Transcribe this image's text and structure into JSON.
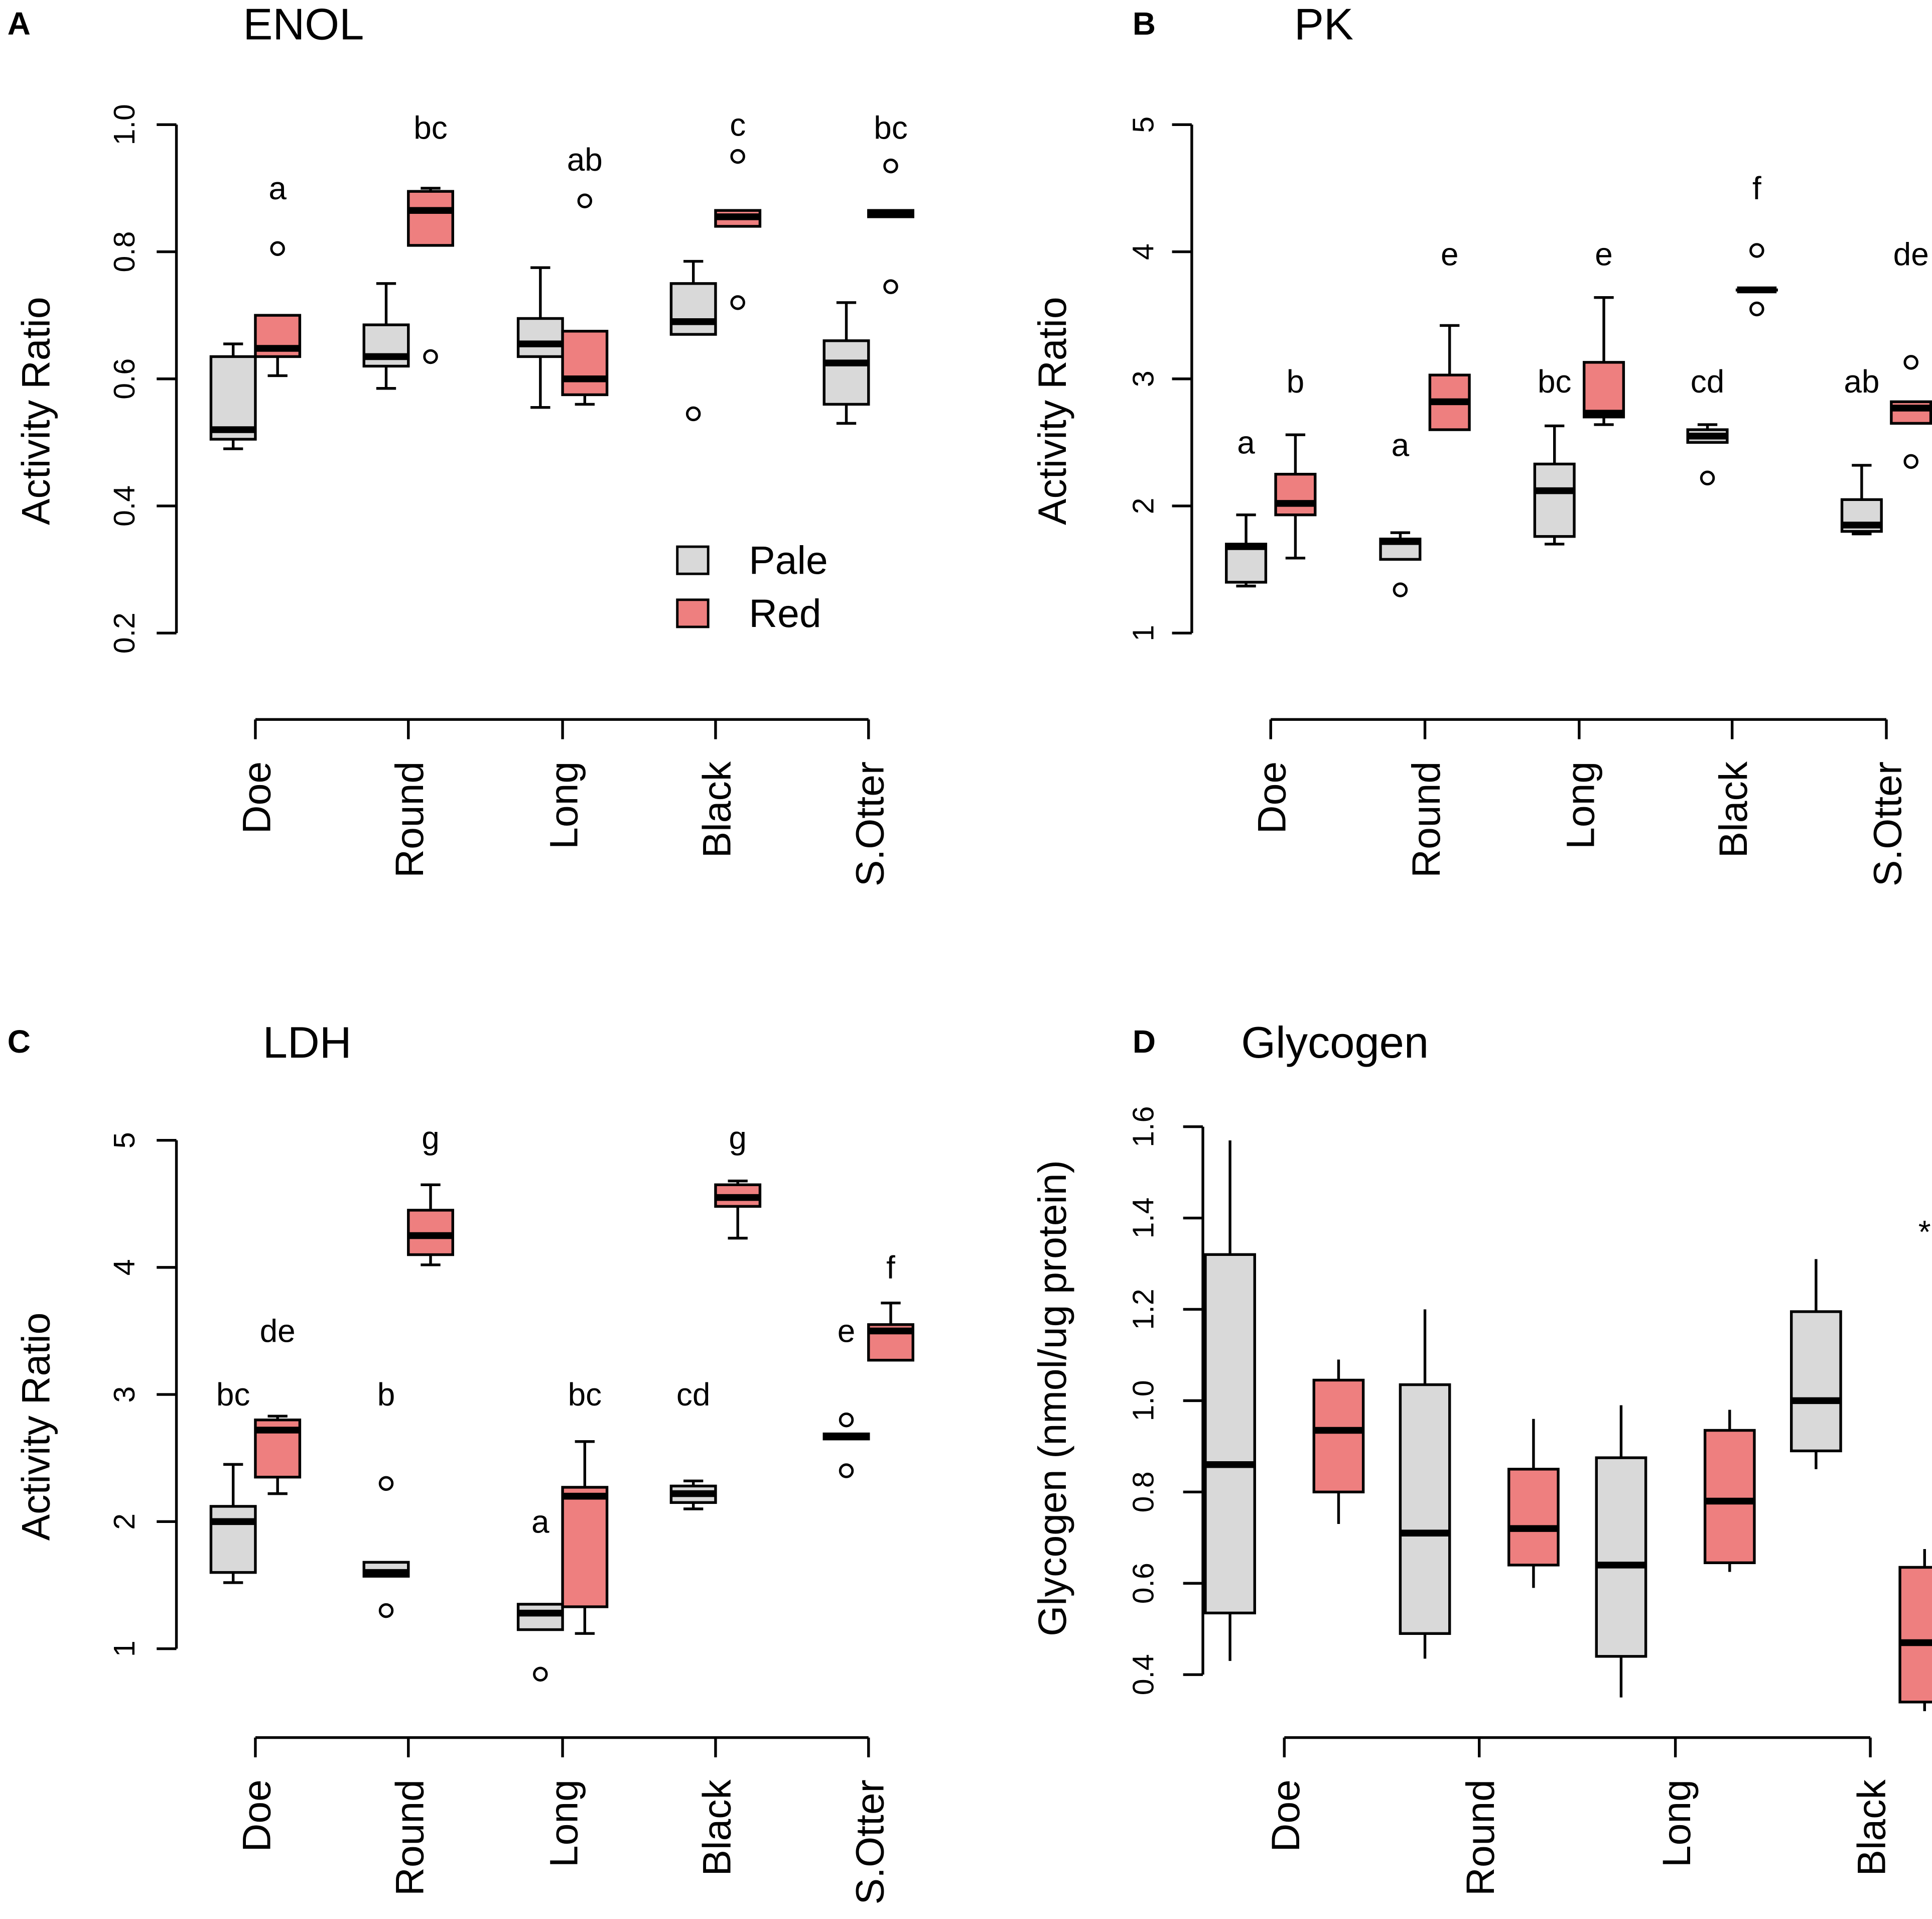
{
  "figure": {
    "legend": {
      "entries": [
        {
          "name": "Pale",
          "color": "#d9d9d9"
        },
        {
          "name": "Red",
          "color": "#ee7f7f"
        }
      ]
    },
    "box_style": {
      "pale_color": "#d9d9d9",
      "red_color": "#ee7f7f",
      "line_color": "#000000"
    }
  },
  "chart_data": [
    {
      "panel_letter": "A",
      "type": "boxplot",
      "title": "ENOL",
      "ylabel": "Activity Ratio",
      "xlabel": "",
      "ylim": [
        0.2,
        1.0
      ],
      "yticks": [
        0.2,
        0.4,
        0.6,
        0.8,
        1.0
      ],
      "ytick_labels": [
        "0.2",
        "0.4",
        "0.6",
        "0.8",
        "1.0"
      ],
      "categories": [
        "Doe",
        "Round",
        "Long",
        "Black",
        "S.Otter"
      ],
      "legend": [
        "Pale",
        "Red"
      ],
      "series": [
        {
          "name": "Pale",
          "boxes": [
            {
              "whislo": 0.49,
              "q1": 0.505,
              "med": 0.52,
              "q3": 0.635,
              "whishi": 0.655,
              "fliers": []
            },
            {
              "whislo": 0.585,
              "q1": 0.62,
              "med": 0.635,
              "q3": 0.685,
              "whishi": 0.75,
              "fliers": []
            },
            {
              "whislo": 0.555,
              "q1": 0.635,
              "med": 0.655,
              "q3": 0.695,
              "whishi": 0.775,
              "fliers": []
            },
            {
              "whislo": 0.67,
              "q1": 0.67,
              "med": 0.69,
              "q3": 0.75,
              "whishi": 0.785,
              "fliers": [
                0.545
              ]
            },
            {
              "whislo": 0.53,
              "q1": 0.56,
              "med": 0.625,
              "q3": 0.66,
              "whishi": 0.72,
              "fliers": []
            }
          ]
        },
        {
          "name": "Red",
          "boxes": [
            {
              "whislo": 0.605,
              "q1": 0.635,
              "med": 0.648,
              "q3": 0.7,
              "whishi": 0.7,
              "fliers": [
                0.805
              ]
            },
            {
              "whislo": 0.81,
              "q1": 0.81,
              "med": 0.865,
              "q3": 0.895,
              "whishi": 0.9,
              "fliers": [
                0.635
              ]
            },
            {
              "whislo": 0.56,
              "q1": 0.575,
              "med": 0.6,
              "q3": 0.675,
              "whishi": 0.675,
              "fliers": [
                0.88
              ]
            },
            {
              "whislo": 0.84,
              "q1": 0.84,
              "med": 0.855,
              "q3": 0.865,
              "whishi": 0.865,
              "fliers": [
                0.72,
                0.95
              ]
            },
            {
              "whislo": 0.855,
              "q1": 0.855,
              "med": 0.86,
              "q3": 0.865,
              "whishi": 0.865,
              "fliers": [
                0.745,
                0.935
              ]
            }
          ]
        }
      ],
      "annotations": [
        {
          "category": "Doe",
          "series": "Red",
          "y": 0.9,
          "text": "a"
        },
        {
          "category": "Round",
          "series": "Red",
          "y": 0.995,
          "text": "bc"
        },
        {
          "category": "Long",
          "series": "Red",
          "y": 0.945,
          "text": "ab"
        },
        {
          "category": "Black",
          "series": "Red",
          "y": 1.0,
          "text": "c"
        },
        {
          "category": "S.Otter",
          "series": "Red",
          "y": 0.995,
          "text": "bc"
        }
      ]
    },
    {
      "panel_letter": "B",
      "type": "boxplot",
      "title": "PK",
      "ylabel": "Activity Ratio",
      "xlabel": "",
      "ylim": [
        1,
        5
      ],
      "yticks": [
        1,
        2,
        3,
        4,
        5
      ],
      "ytick_labels": [
        "1",
        "2",
        "3",
        "4",
        "5"
      ],
      "categories": [
        "Doe",
        "Round",
        "Long",
        "Black",
        "S.Otter"
      ],
      "legend": [
        "Pale",
        "Red"
      ],
      "series": [
        {
          "name": "Pale",
          "boxes": [
            {
              "whislo": 1.37,
              "q1": 1.4,
              "med": 1.68,
              "q3": 1.7,
              "whishi": 1.93,
              "fliers": []
            },
            {
              "whislo": 1.58,
              "q1": 1.58,
              "med": 1.72,
              "q3": 1.74,
              "whishi": 1.79,
              "fliers": [
                1.34
              ]
            },
            {
              "whislo": 1.7,
              "q1": 1.76,
              "med": 2.12,
              "q3": 2.33,
              "whishi": 2.63,
              "fliers": []
            },
            {
              "whislo": 2.5,
              "q1": 2.5,
              "med": 2.55,
              "q3": 2.6,
              "whishi": 2.64,
              "fliers": [
                2.22
              ]
            },
            {
              "whislo": 1.78,
              "q1": 1.8,
              "med": 1.85,
              "q3": 2.05,
              "whishi": 2.32,
              "fliers": []
            }
          ]
        },
        {
          "name": "Red",
          "boxes": [
            {
              "whislo": 1.59,
              "q1": 1.93,
              "med": 2.02,
              "q3": 2.25,
              "whishi": 2.56,
              "fliers": []
            },
            {
              "whislo": 2.6,
              "q1": 2.6,
              "med": 2.82,
              "q3": 3.03,
              "whishi": 3.42,
              "fliers": []
            },
            {
              "whislo": 2.64,
              "q1": 2.7,
              "med": 2.73,
              "q3": 3.13,
              "whishi": 3.64,
              "fliers": []
            },
            {
              "whislo": 3.7,
              "q1": 3.7,
              "med": 3.7,
              "q3": 3.7,
              "whishi": 3.7,
              "fliers": [
                3.55,
                4.01
              ]
            },
            {
              "whislo": 2.65,
              "q1": 2.65,
              "med": 2.77,
              "q3": 2.82,
              "whishi": 2.82,
              "fliers": [
                2.35,
                3.13
              ]
            }
          ]
        }
      ],
      "annotations": [
        {
          "category": "Doe",
          "series": "Pale",
          "y": 2.5,
          "text": "a"
        },
        {
          "category": "Doe",
          "series": "Red",
          "y": 2.98,
          "text": "b"
        },
        {
          "category": "Round",
          "series": "Pale",
          "y": 2.48,
          "text": "a"
        },
        {
          "category": "Round",
          "series": "Red",
          "y": 3.98,
          "text": "e"
        },
        {
          "category": "Long",
          "series": "Pale",
          "y": 2.98,
          "text": "bc"
        },
        {
          "category": "Long",
          "series": "Red",
          "y": 3.98,
          "text": "e"
        },
        {
          "category": "Black",
          "series": "Pale",
          "y": 2.98,
          "text": "cd"
        },
        {
          "category": "Black",
          "series": "Red",
          "y": 4.5,
          "text": "f"
        },
        {
          "category": "S.Otter",
          "series": "Pale",
          "y": 2.98,
          "text": "ab"
        },
        {
          "category": "S.Otter",
          "series": "Red",
          "y": 3.98,
          "text": "de"
        }
      ]
    },
    {
      "panel_letter": "C",
      "type": "boxplot",
      "title": "LDH",
      "ylabel": "Activity Ratio",
      "xlabel": "",
      "ylim": [
        1,
        5
      ],
      "yticks": [
        1,
        2,
        3,
        4,
        5
      ],
      "ytick_labels": [
        "1",
        "2",
        "3",
        "4",
        "5"
      ],
      "categories": [
        "Doe",
        "Round",
        "Long",
        "Black",
        "S.Otter"
      ],
      "legend": [
        "Pale",
        "Red"
      ],
      "series": [
        {
          "name": "Pale",
          "boxes": [
            {
              "whislo": 1.52,
              "q1": 1.6,
              "med": 2.0,
              "q3": 2.12,
              "whishi": 2.45,
              "fliers": []
            },
            {
              "whislo": 1.57,
              "q1": 1.57,
              "med": 1.6,
              "q3": 1.68,
              "whishi": 1.68,
              "fliers": [
                1.3,
                2.3
              ]
            },
            {
              "whislo": 1.15,
              "q1": 1.15,
              "med": 1.28,
              "q3": 1.35,
              "whishi": 1.35,
              "fliers": [
                0.8
              ]
            },
            {
              "whislo": 2.1,
              "q1": 2.15,
              "med": 2.22,
              "q3": 2.28,
              "whishi": 2.32,
              "fliers": []
            },
            {
              "whislo": 2.65,
              "q1": 2.65,
              "med": 2.67,
              "q3": 2.69,
              "whishi": 2.69,
              "fliers": [
                2.4,
                2.8
              ]
            }
          ]
        },
        {
          "name": "Red",
          "boxes": [
            {
              "whislo": 2.22,
              "q1": 2.35,
              "med": 2.72,
              "q3": 2.8,
              "whishi": 2.83,
              "fliers": []
            },
            {
              "whislo": 4.02,
              "q1": 4.1,
              "med": 4.25,
              "q3": 4.45,
              "whishi": 4.65,
              "fliers": []
            },
            {
              "whislo": 1.12,
              "q1": 1.33,
              "med": 2.2,
              "q3": 2.27,
              "whishi": 2.63,
              "fliers": []
            },
            {
              "whislo": 4.23,
              "q1": 4.48,
              "med": 4.55,
              "q3": 4.65,
              "whishi": 4.68,
              "fliers": []
            },
            {
              "whislo": 3.27,
              "q1": 3.27,
              "med": 3.5,
              "q3": 3.55,
              "whishi": 3.72,
              "fliers": []
            }
          ]
        }
      ],
      "annotations": [
        {
          "category": "Doe",
          "series": "Pale",
          "y": 3.0,
          "text": "bc"
        },
        {
          "category": "Doe",
          "series": "Red",
          "y": 3.5,
          "text": "de"
        },
        {
          "category": "Round",
          "series": "Pale",
          "y": 3.0,
          "text": "b"
        },
        {
          "category": "Round",
          "series": "Red",
          "y": 5.02,
          "text": "g"
        },
        {
          "category": "Long",
          "series": "Pale",
          "y": 2.0,
          "text": "a"
        },
        {
          "category": "Long",
          "series": "Red",
          "y": 3.0,
          "text": "bc"
        },
        {
          "category": "Black",
          "series": "Pale",
          "y": 3.0,
          "text": "cd"
        },
        {
          "category": "Black",
          "series": "Red",
          "y": 5.02,
          "text": "g"
        },
        {
          "category": "S.Otter",
          "series": "Pale",
          "y": 3.5,
          "text": "e"
        },
        {
          "category": "S.Otter",
          "series": "Red",
          "y": 4.0,
          "text": "f"
        }
      ]
    },
    {
      "panel_letter": "D",
      "type": "boxplot",
      "title": "Glycogen",
      "ylabel": "Glycogen (nmol/ug protein)",
      "xlabel": "",
      "ylim": [
        0.4,
        1.6
      ],
      "yticks": [
        0.4,
        0.6,
        0.8,
        1.0,
        1.2,
        1.4,
        1.6
      ],
      "ytick_labels": [
        "0.4",
        "0.6",
        "0.8",
        "1.0",
        "1.2",
        "1.4",
        "1.6"
      ],
      "categories": [
        "Doe",
        "Round",
        "Long",
        "Black"
      ],
      "legend": [
        "Pale",
        "Red"
      ],
      "series": [
        {
          "name": "Pale",
          "boxes": [
            {
              "whislo": 0.43,
              "q1": 0.535,
              "med": 0.86,
              "q3": 1.32,
              "whishi": 1.57,
              "fliers": []
            },
            {
              "whislo": 0.435,
              "q1": 0.49,
              "med": 0.71,
              "q3": 1.035,
              "whishi": 1.2,
              "fliers": []
            },
            {
              "whislo": 0.35,
              "q1": 0.44,
              "med": 0.64,
              "q3": 0.875,
              "whishi": 0.99,
              "fliers": []
            },
            {
              "whislo": 0.85,
              "q1": 0.89,
              "med": 1.0,
              "q3": 1.195,
              "whishi": 1.31,
              "fliers": []
            }
          ]
        },
        {
          "name": "Red",
          "boxes": [
            {
              "whislo": 0.73,
              "q1": 0.8,
              "med": 0.935,
              "q3": 1.045,
              "whishi": 1.09,
              "fliers": []
            },
            {
              "whislo": 0.59,
              "q1": 0.64,
              "med": 0.72,
              "q3": 0.85,
              "whishi": 0.96,
              "fliers": []
            },
            {
              "whislo": 0.625,
              "q1": 0.645,
              "med": 0.78,
              "q3": 0.935,
              "whishi": 0.98,
              "fliers": []
            },
            {
              "whislo": 0.32,
              "q1": 0.34,
              "med": 0.47,
              "q3": 0.635,
              "whishi": 0.675,
              "fliers": []
            }
          ]
        }
      ],
      "annotations": [
        {
          "category": "Black",
          "series": "Red",
          "y": 1.37,
          "text": "*"
        }
      ]
    }
  ]
}
